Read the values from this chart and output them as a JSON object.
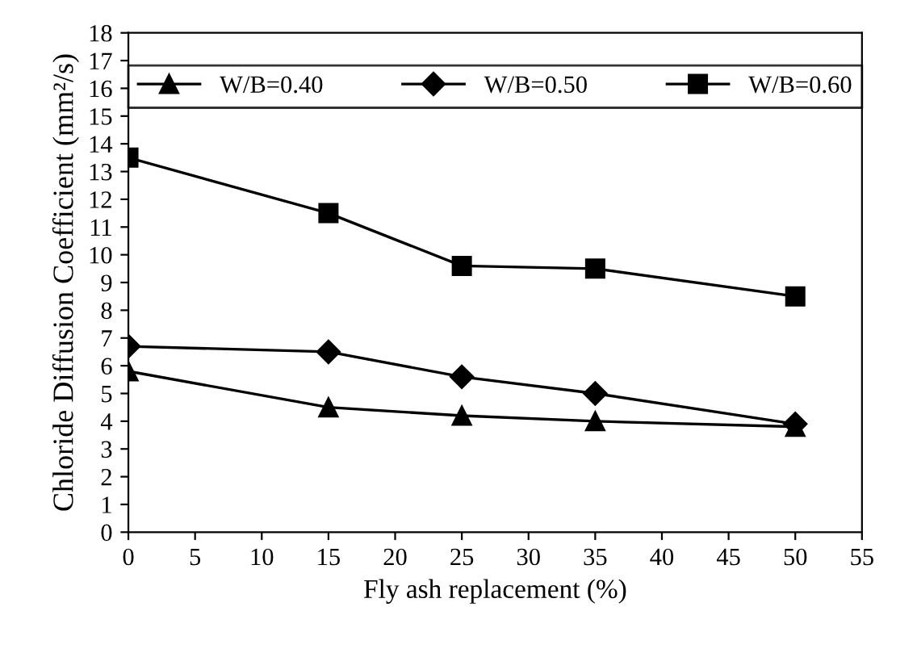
{
  "chart_data": {
    "type": "line",
    "xlabel": "Fly ash replacement (%)",
    "ylabel": "Chloride Diffusion Coefficient (mm²/s)",
    "x": [
      0,
      15,
      25,
      35,
      50
    ],
    "series": [
      {
        "name": "W/B=0.40",
        "color": "#000000",
        "marker": "triangle",
        "values": [
          5.8,
          4.5,
          4.2,
          4.0,
          3.8
        ]
      },
      {
        "name": "W/B=0.50",
        "color": "#000000",
        "marker": "diamond",
        "values": [
          6.7,
          6.5,
          5.6,
          5.0,
          3.9
        ]
      },
      {
        "name": "W/B=0.60",
        "color": "#000000",
        "marker": "square",
        "values": [
          13.5,
          11.5,
          9.6,
          9.5,
          8.5
        ]
      }
    ],
    "xlim": [
      0,
      55
    ],
    "xticks": [
      0,
      5,
      10,
      15,
      20,
      25,
      30,
      35,
      40,
      45,
      50,
      55
    ],
    "ylim": [
      0,
      18
    ],
    "yticks": [
      0,
      1,
      2,
      3,
      4,
      5,
      6,
      7,
      8,
      9,
      10,
      11,
      12,
      13,
      14,
      15,
      16,
      17,
      18
    ],
    "grid": false,
    "legend": "top",
    "line_style": "solid"
  }
}
